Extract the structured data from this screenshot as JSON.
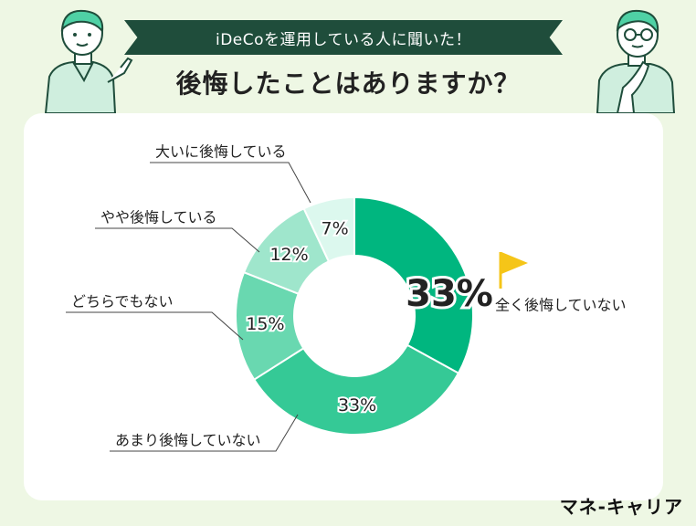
{
  "header": {
    "banner_text": "iDeCoを運用している人に聞いた！",
    "title": "後悔したことはありますか？"
  },
  "brand": {
    "name": "マネ-キャリア"
  },
  "chart_data": {
    "type": "pie",
    "donut": true,
    "title": "後悔したことはありますか？",
    "slices": [
      {
        "label": "全く後悔していない",
        "value": 33,
        "value_label": "33%",
        "color": "#00b67f",
        "highlight": true
      },
      {
        "label": "あまり後悔していない",
        "value": 33,
        "value_label": "33%",
        "color": "#35c996"
      },
      {
        "label": "どちらでもない",
        "value": 15,
        "value_label": "15%",
        "color": "#69d8b0"
      },
      {
        "label": "やや後悔している",
        "value": 12,
        "value_label": "12%",
        "color": "#9fe6cc"
      },
      {
        "label": "大いに後悔している",
        "value": 7,
        "value_label": "7%",
        "color": "#dcf8ee"
      }
    ]
  },
  "colors": {
    "background": "#eef7e4",
    "banner": "#1f4d3b",
    "flag": "#f5c518"
  }
}
